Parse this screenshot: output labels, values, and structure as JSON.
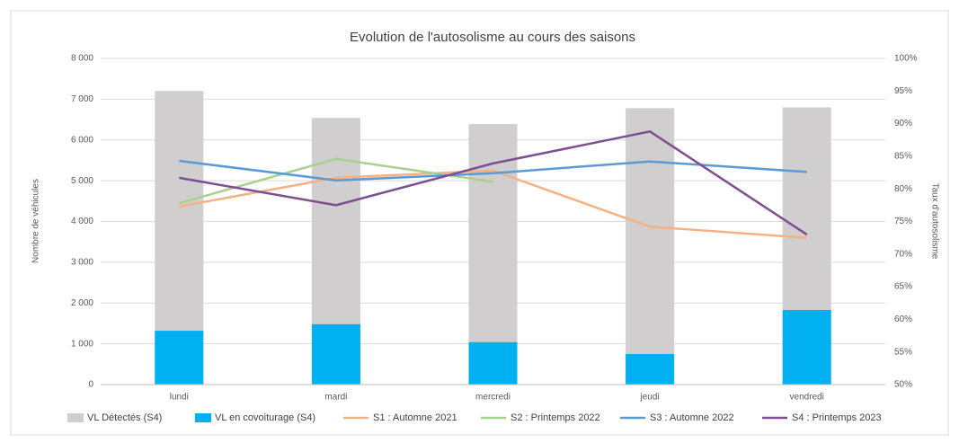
{
  "chart_data": {
    "type": "combo",
    "title": "Evolution de l'autosolisme au cours des saisons",
    "y_label": "Nombre de véhicules",
    "y2_label": "Taux d'autosolisme",
    "categories": [
      "lundi",
      "mardi",
      "mercredi",
      "jeudi",
      "vendredi"
    ],
    "series": [
      {
        "name": "VL Détectés (S4)",
        "type": "bar",
        "color": "#d0cece",
        "values": [
          7200,
          6540,
          6390,
          6780,
          6800
        ]
      },
      {
        "name": "VL en covoiturage (S4)",
        "type": "bar",
        "color": "#00b0f0",
        "values": [
          1320,
          1480,
          1040,
          750,
          1830
        ]
      },
      {
        "name": "S1 : Automne 2021",
        "type": "line",
        "axis": "y2",
        "color": "#f4b183",
        "values": [
          77.3,
          81.7,
          82.8,
          74.2,
          72.5
        ]
      },
      {
        "name": "S2 : Printemps 2022",
        "type": "line",
        "axis": "y2",
        "color": "#a9d18e",
        "values": [
          77.8,
          84.6,
          81.1,
          null,
          null
        ]
      },
      {
        "name": "S3 : Automne 2022",
        "type": "line",
        "axis": "y2",
        "color": "#5b9bd5",
        "values": [
          84.3,
          81.3,
          82.4,
          84.2,
          82.6
        ]
      },
      {
        "name": "S4 : Printemps 2023",
        "type": "line",
        "axis": "y2",
        "color": "#7c4f8f",
        "values": [
          81.7,
          77.5,
          83.9,
          88.8,
          73.0
        ]
      }
    ],
    "ylim": [
      0,
      8000
    ],
    "yticks": [
      0,
      {
        "value": 1000,
        "label": "1 000"
      },
      {
        "value": 2000,
        "label": "2 000"
      },
      {
        "value": 3000,
        "label": "3 000"
      },
      {
        "value": 4000,
        "label": "4 000"
      },
      {
        "value": 5000,
        "label": "5 000"
      },
      {
        "value": 6000,
        "label": "6 000"
      },
      {
        "value": 7000,
        "label": "7 000"
      },
      {
        "value": 8000,
        "label": "8 000"
      }
    ],
    "y2lim": [
      50,
      100
    ],
    "y2ticks": [
      {
        "value": 50,
        "label": "50%"
      },
      {
        "value": 55,
        "label": "55%"
      },
      {
        "value": 60,
        "label": "60%"
      },
      {
        "value": 65,
        "label": "65%"
      },
      {
        "value": 70,
        "label": "70%"
      },
      {
        "value": 75,
        "label": "75%"
      },
      {
        "value": 80,
        "label": "80%"
      },
      {
        "value": 85,
        "label": "85%"
      },
      {
        "value": 90,
        "label": "90%"
      },
      {
        "value": 95,
        "label": "95%"
      },
      {
        "value": 100,
        "label": "100%"
      }
    ],
    "grid": true,
    "legend": "bottom"
  }
}
